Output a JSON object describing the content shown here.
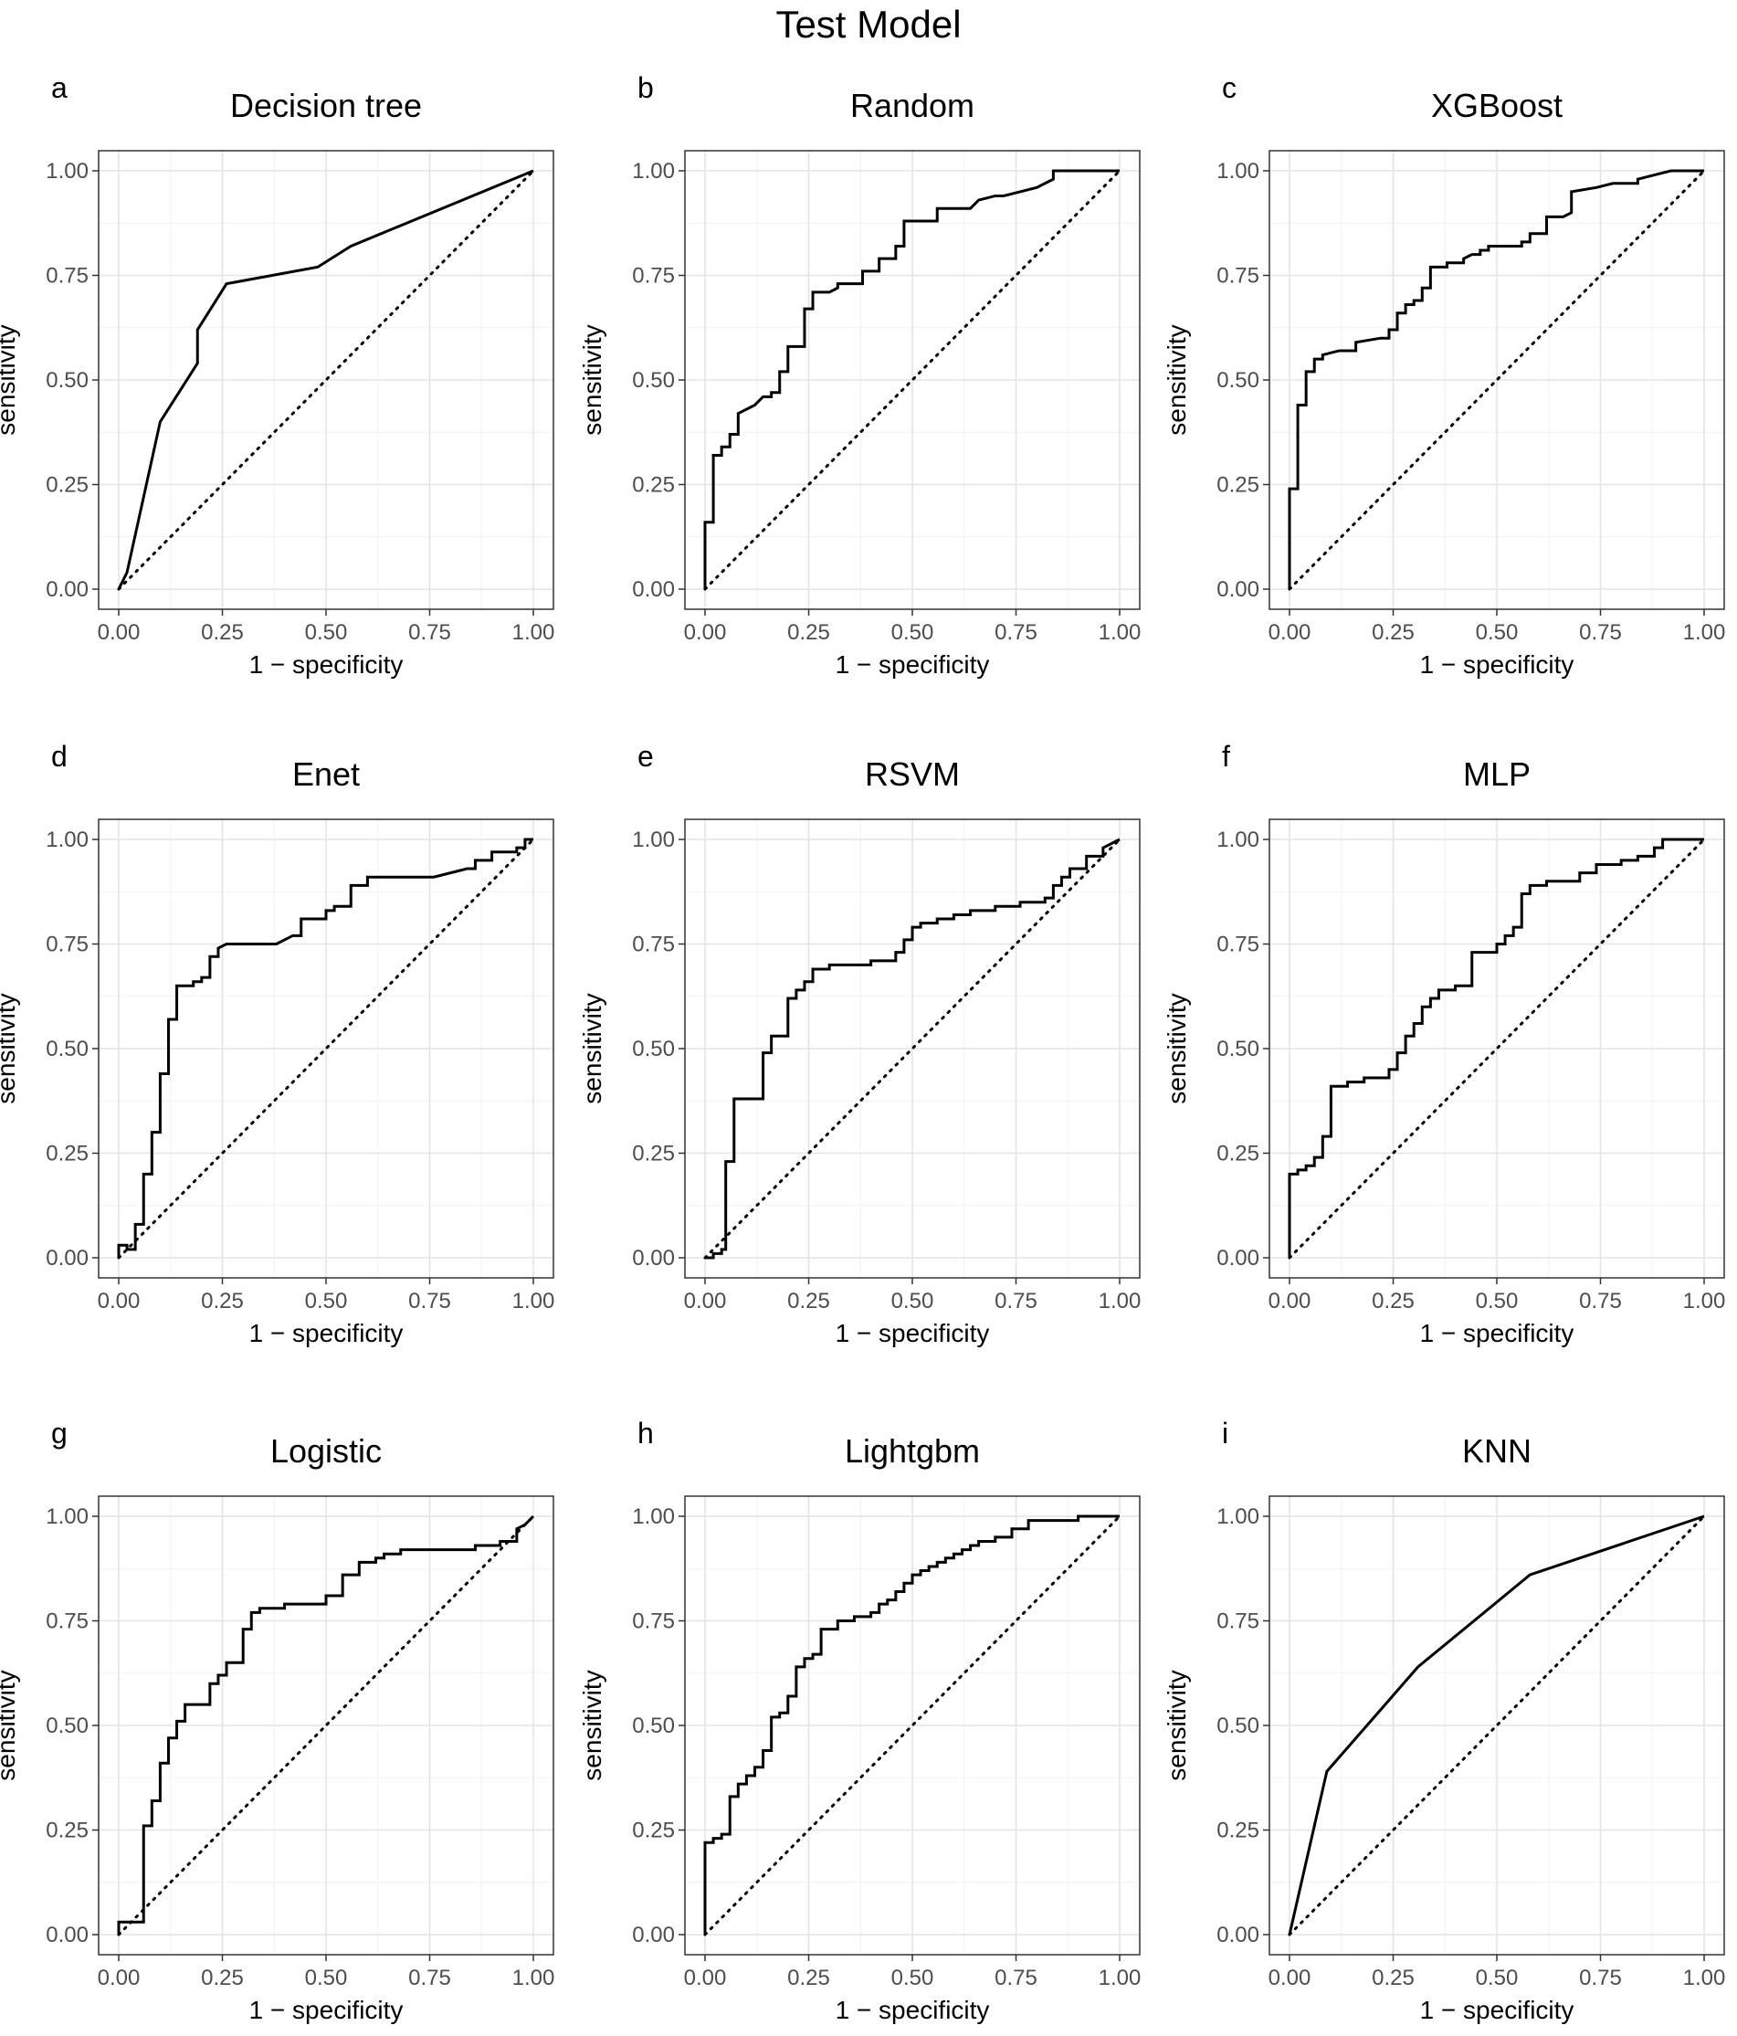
{
  "figure_title": "Test Model",
  "chart_data": [
    {
      "panel": "a",
      "title": "Decision tree",
      "type": "line",
      "xlabel": "1 − specificity",
      "ylabel": "sensitivity",
      "xlim": [
        0,
        1
      ],
      "ylim": [
        0,
        1
      ],
      "ticks": [
        "0.00",
        "0.25",
        "0.50",
        "0.75",
        "1.00"
      ],
      "curve": {
        "name": "ROC",
        "x": [
          0,
          0.02,
          0.1,
          0.19,
          0.19,
          0.26,
          0.48,
          0.56,
          1.0
        ],
        "y": [
          0,
          0.04,
          0.4,
          0.54,
          0.62,
          0.73,
          0.77,
          0.82,
          1.0
        ]
      },
      "reference": {
        "name": "chance",
        "x": [
          0,
          1
        ],
        "y": [
          0,
          1
        ]
      }
    },
    {
      "panel": "b",
      "title": "Random",
      "type": "line",
      "xlabel": "1 − specificity",
      "ylabel": "sensitivity",
      "xlim": [
        0,
        1
      ],
      "ylim": [
        0,
        1
      ],
      "ticks": [
        "0.00",
        "0.25",
        "0.50",
        "0.75",
        "1.00"
      ],
      "curve": {
        "name": "ROC",
        "x": [
          0,
          0,
          0.02,
          0.02,
          0.04,
          0.04,
          0.06,
          0.06,
          0.08,
          0.08,
          0.12,
          0.14,
          0.16,
          0.16,
          0.18,
          0.18,
          0.2,
          0.2,
          0.24,
          0.24,
          0.26,
          0.26,
          0.3,
          0.32,
          0.32,
          0.38,
          0.38,
          0.42,
          0.42,
          0.46,
          0.46,
          0.48,
          0.48,
          0.56,
          0.56,
          0.64,
          0.66,
          0.7,
          0.72,
          0.76,
          0.8,
          0.82,
          0.84,
          0.84,
          0.9,
          1.0
        ],
        "y": [
          0,
          0.16,
          0.16,
          0.32,
          0.32,
          0.34,
          0.34,
          0.37,
          0.37,
          0.42,
          0.44,
          0.46,
          0.46,
          0.47,
          0.47,
          0.52,
          0.52,
          0.58,
          0.58,
          0.67,
          0.67,
          0.71,
          0.71,
          0.72,
          0.73,
          0.73,
          0.76,
          0.76,
          0.79,
          0.79,
          0.82,
          0.82,
          0.88,
          0.88,
          0.91,
          0.91,
          0.93,
          0.94,
          0.94,
          0.95,
          0.96,
          0.97,
          0.98,
          1.0,
          1.0,
          1.0
        ]
      },
      "reference": {
        "name": "chance",
        "x": [
          0,
          1
        ],
        "y": [
          0,
          1
        ]
      }
    },
    {
      "panel": "c",
      "title": "XGBoost",
      "type": "line",
      "xlabel": "1 − specificity",
      "ylabel": "sensitivity",
      "xlim": [
        0,
        1
      ],
      "ylim": [
        0,
        1
      ],
      "ticks": [
        "0.00",
        "0.25",
        "0.50",
        "0.75",
        "1.00"
      ],
      "curve": {
        "name": "ROC",
        "x": [
          0,
          0,
          0.02,
          0.02,
          0.04,
          0.04,
          0.06,
          0.06,
          0.08,
          0.08,
          0.12,
          0.16,
          0.16,
          0.22,
          0.24,
          0.24,
          0.26,
          0.26,
          0.28,
          0.28,
          0.3,
          0.3,
          0.32,
          0.32,
          0.34,
          0.34,
          0.38,
          0.38,
          0.42,
          0.42,
          0.44,
          0.46,
          0.46,
          0.48,
          0.48,
          0.56,
          0.56,
          0.58,
          0.58,
          0.62,
          0.62,
          0.66,
          0.68,
          0.68,
          0.74,
          0.78,
          0.84,
          0.84,
          0.88,
          0.92,
          1.0
        ],
        "y": [
          0,
          0.24,
          0.24,
          0.44,
          0.44,
          0.52,
          0.52,
          0.55,
          0.55,
          0.56,
          0.57,
          0.57,
          0.59,
          0.6,
          0.6,
          0.62,
          0.62,
          0.66,
          0.66,
          0.68,
          0.68,
          0.69,
          0.69,
          0.72,
          0.72,
          0.77,
          0.77,
          0.78,
          0.78,
          0.79,
          0.8,
          0.8,
          0.81,
          0.81,
          0.82,
          0.82,
          0.83,
          0.83,
          0.85,
          0.85,
          0.89,
          0.89,
          0.9,
          0.95,
          0.96,
          0.97,
          0.97,
          0.98,
          0.99,
          1.0,
          1.0
        ]
      },
      "reference": {
        "name": "chance",
        "x": [
          0,
          1
        ],
        "y": [
          0,
          1
        ]
      }
    },
    {
      "panel": "d",
      "title": "Enet",
      "type": "line",
      "xlabel": "1 − specificity",
      "ylabel": "sensitivity",
      "xlim": [
        0,
        1
      ],
      "ylim": [
        0,
        1
      ],
      "ticks": [
        "0.00",
        "0.25",
        "0.50",
        "0.75",
        "1.00"
      ],
      "curve": {
        "name": "ROC",
        "x": [
          0,
          0,
          0.02,
          0.02,
          0.04,
          0.04,
          0.06,
          0.06,
          0.08,
          0.08,
          0.1,
          0.1,
          0.12,
          0.12,
          0.14,
          0.14,
          0.18,
          0.18,
          0.2,
          0.2,
          0.22,
          0.22,
          0.24,
          0.24,
          0.26,
          0.38,
          0.4,
          0.42,
          0.44,
          0.44,
          0.5,
          0.5,
          0.52,
          0.52,
          0.54,
          0.56,
          0.56,
          0.6,
          0.6,
          0.64,
          0.7,
          0.76,
          0.8,
          0.8,
          0.84,
          0.86,
          0.86,
          0.9,
          0.9,
          0.96,
          0.96,
          0.98,
          0.98,
          1.0
        ],
        "y": [
          0,
          0.03,
          0.03,
          0.02,
          0.02,
          0.08,
          0.08,
          0.2,
          0.2,
          0.3,
          0.3,
          0.44,
          0.44,
          0.57,
          0.57,
          0.65,
          0.65,
          0.66,
          0.66,
          0.67,
          0.67,
          0.72,
          0.72,
          0.74,
          0.75,
          0.75,
          0.76,
          0.77,
          0.77,
          0.81,
          0.81,
          0.83,
          0.83,
          0.84,
          0.84,
          0.84,
          0.89,
          0.89,
          0.91,
          0.91,
          0.91,
          0.91,
          0.92,
          0.92,
          0.93,
          0.93,
          0.95,
          0.95,
          0.97,
          0.97,
          0.98,
          0.98,
          1.0,
          1.0
        ]
      },
      "reference": {
        "name": "chance",
        "x": [
          0,
          1
        ],
        "y": [
          0,
          1
        ]
      }
    },
    {
      "panel": "e",
      "title": "RSVM",
      "type": "line",
      "xlabel": "1 − specificity",
      "ylabel": "sensitivity",
      "xlim": [
        0,
        1
      ],
      "ylim": [
        0,
        1
      ],
      "ticks": [
        "0.00",
        "0.25",
        "0.50",
        "0.75",
        "1.00"
      ],
      "curve": {
        "name": "ROC",
        "x": [
          0,
          0.02,
          0.02,
          0.04,
          0.04,
          0.05,
          0.05,
          0.07,
          0.07,
          0.14,
          0.14,
          0.16,
          0.16,
          0.2,
          0.2,
          0.22,
          0.22,
          0.24,
          0.24,
          0.26,
          0.26,
          0.3,
          0.3,
          0.4,
          0.4,
          0.46,
          0.46,
          0.48,
          0.48,
          0.5,
          0.5,
          0.52,
          0.52,
          0.56,
          0.56,
          0.6,
          0.6,
          0.64,
          0.64,
          0.7,
          0.7,
          0.76,
          0.76,
          0.82,
          0.82,
          0.84,
          0.84,
          0.86,
          0.86,
          0.88,
          0.88,
          0.92,
          0.92,
          0.96,
          0.96,
          1.0
        ],
        "y": [
          0,
          0,
          0.01,
          0.01,
          0.02,
          0.02,
          0.23,
          0.23,
          0.38,
          0.38,
          0.49,
          0.49,
          0.53,
          0.53,
          0.62,
          0.62,
          0.64,
          0.64,
          0.66,
          0.66,
          0.69,
          0.69,
          0.7,
          0.7,
          0.71,
          0.71,
          0.73,
          0.73,
          0.76,
          0.76,
          0.79,
          0.79,
          0.8,
          0.8,
          0.81,
          0.81,
          0.82,
          0.82,
          0.83,
          0.83,
          0.84,
          0.84,
          0.85,
          0.85,
          0.86,
          0.86,
          0.89,
          0.89,
          0.91,
          0.91,
          0.93,
          0.93,
          0.96,
          0.96,
          0.98,
          1.0
        ]
      },
      "reference": {
        "name": "chance",
        "x": [
          0,
          1
        ],
        "y": [
          0,
          1
        ]
      }
    },
    {
      "panel": "f",
      "title": "MLP",
      "type": "line",
      "xlabel": "1 − specificity",
      "ylabel": "sensitivity",
      "xlim": [
        0,
        1
      ],
      "ylim": [
        0,
        1
      ],
      "ticks": [
        "0.00",
        "0.25",
        "0.50",
        "0.75",
        "1.00"
      ],
      "curve": {
        "name": "ROC",
        "x": [
          0,
          0,
          0.02,
          0.02,
          0.04,
          0.04,
          0.06,
          0.06,
          0.08,
          0.08,
          0.1,
          0.1,
          0.14,
          0.14,
          0.18,
          0.18,
          0.24,
          0.24,
          0.26,
          0.26,
          0.28,
          0.28,
          0.3,
          0.3,
          0.32,
          0.32,
          0.34,
          0.34,
          0.36,
          0.36,
          0.4,
          0.4,
          0.44,
          0.44,
          0.5,
          0.5,
          0.52,
          0.52,
          0.54,
          0.54,
          0.56,
          0.56,
          0.58,
          0.58,
          0.62,
          0.62,
          0.7,
          0.7,
          0.74,
          0.74,
          0.8,
          0.8,
          0.84,
          0.84,
          0.88,
          0.88,
          0.9,
          0.9,
          1.0
        ],
        "y": [
          0,
          0.2,
          0.2,
          0.21,
          0.21,
          0.22,
          0.22,
          0.24,
          0.24,
          0.29,
          0.29,
          0.41,
          0.41,
          0.42,
          0.42,
          0.43,
          0.43,
          0.45,
          0.45,
          0.49,
          0.49,
          0.53,
          0.53,
          0.56,
          0.56,
          0.6,
          0.6,
          0.62,
          0.62,
          0.64,
          0.64,
          0.65,
          0.65,
          0.73,
          0.73,
          0.75,
          0.75,
          0.77,
          0.77,
          0.79,
          0.79,
          0.87,
          0.87,
          0.89,
          0.89,
          0.9,
          0.9,
          0.92,
          0.92,
          0.94,
          0.94,
          0.95,
          0.95,
          0.96,
          0.96,
          0.98,
          0.98,
          1.0,
          1.0
        ]
      },
      "reference": {
        "name": "chance",
        "x": [
          0,
          1
        ],
        "y": [
          0,
          1
        ]
      }
    },
    {
      "panel": "g",
      "title": "Logistic",
      "type": "line",
      "xlabel": "1 − specificity",
      "ylabel": "sensitivity",
      "xlim": [
        0,
        1
      ],
      "ylim": [
        0,
        1
      ],
      "ticks": [
        "0.00",
        "0.25",
        "0.50",
        "0.75",
        "1.00"
      ],
      "curve": {
        "name": "ROC",
        "x": [
          0,
          0,
          0.04,
          0.04,
          0.06,
          0.06,
          0.08,
          0.08,
          0.1,
          0.1,
          0.12,
          0.12,
          0.14,
          0.14,
          0.16,
          0.16,
          0.18,
          0.18,
          0.22,
          0.22,
          0.24,
          0.24,
          0.26,
          0.26,
          0.28,
          0.28,
          0.3,
          0.3,
          0.32,
          0.32,
          0.34,
          0.34,
          0.36,
          0.36,
          0.4,
          0.4,
          0.44,
          0.44,
          0.5,
          0.5,
          0.54,
          0.54,
          0.58,
          0.58,
          0.62,
          0.62,
          0.64,
          0.64,
          0.68,
          0.68,
          0.74,
          0.74,
          0.86,
          0.86,
          0.92,
          0.92,
          0.96,
          0.96,
          0.98,
          1.0
        ],
        "y": [
          0,
          0.03,
          0.03,
          0.03,
          0.03,
          0.26,
          0.26,
          0.32,
          0.32,
          0.41,
          0.41,
          0.47,
          0.47,
          0.51,
          0.51,
          0.55,
          0.55,
          0.55,
          0.55,
          0.6,
          0.6,
          0.62,
          0.62,
          0.65,
          0.65,
          0.65,
          0.65,
          0.73,
          0.73,
          0.77,
          0.77,
          0.78,
          0.78,
          0.78,
          0.78,
          0.79,
          0.79,
          0.79,
          0.79,
          0.81,
          0.81,
          0.86,
          0.86,
          0.89,
          0.89,
          0.9,
          0.9,
          0.91,
          0.91,
          0.92,
          0.92,
          0.92,
          0.92,
          0.93,
          0.93,
          0.94,
          0.94,
          0.97,
          0.98,
          1.0
        ]
      },
      "reference": {
        "name": "chance",
        "x": [
          0,
          1
        ],
        "y": [
          0,
          1
        ]
      }
    },
    {
      "panel": "h",
      "title": "Lightgbm",
      "type": "line",
      "xlabel": "1 − specificity",
      "ylabel": "sensitivity",
      "xlim": [
        0,
        1
      ],
      "ylim": [
        0,
        1
      ],
      "ticks": [
        "0.00",
        "0.25",
        "0.50",
        "0.75",
        "1.00"
      ],
      "curve": {
        "name": "ROC",
        "x": [
          0,
          0,
          0.02,
          0.02,
          0.04,
          0.04,
          0.06,
          0.06,
          0.08,
          0.08,
          0.1,
          0.1,
          0.12,
          0.12,
          0.14,
          0.14,
          0.16,
          0.16,
          0.18,
          0.18,
          0.2,
          0.2,
          0.22,
          0.22,
          0.24,
          0.24,
          0.26,
          0.26,
          0.28,
          0.28,
          0.32,
          0.32,
          0.36,
          0.36,
          0.4,
          0.4,
          0.42,
          0.42,
          0.44,
          0.44,
          0.46,
          0.46,
          0.48,
          0.48,
          0.5,
          0.5,
          0.52,
          0.52,
          0.54,
          0.54,
          0.56,
          0.56,
          0.58,
          0.58,
          0.6,
          0.6,
          0.62,
          0.62,
          0.64,
          0.64,
          0.66,
          0.66,
          0.68,
          0.68,
          0.7,
          0.7,
          0.74,
          0.74,
          0.78,
          0.78,
          0.82,
          0.82,
          0.9,
          0.9,
          0.96,
          1.0
        ],
        "y": [
          0,
          0.22,
          0.22,
          0.23,
          0.23,
          0.24,
          0.24,
          0.33,
          0.33,
          0.36,
          0.36,
          0.38,
          0.38,
          0.4,
          0.4,
          0.44,
          0.44,
          0.52,
          0.52,
          0.53,
          0.53,
          0.57,
          0.57,
          0.64,
          0.64,
          0.66,
          0.66,
          0.67,
          0.67,
          0.73,
          0.73,
          0.75,
          0.75,
          0.76,
          0.76,
          0.77,
          0.77,
          0.79,
          0.79,
          0.8,
          0.8,
          0.82,
          0.82,
          0.84,
          0.84,
          0.86,
          0.86,
          0.87,
          0.87,
          0.88,
          0.88,
          0.89,
          0.89,
          0.9,
          0.9,
          0.91,
          0.91,
          0.92,
          0.92,
          0.93,
          0.93,
          0.94,
          0.94,
          0.94,
          0.94,
          0.95,
          0.95,
          0.97,
          0.97,
          0.99,
          0.99,
          0.99,
          0.99,
          1.0,
          1.0,
          1.0
        ]
      },
      "reference": {
        "name": "chance",
        "x": [
          0,
          1
        ],
        "y": [
          0,
          1
        ]
      }
    },
    {
      "panel": "i",
      "title": "KNN",
      "type": "line",
      "xlabel": "1 − specificity",
      "ylabel": "sensitivity",
      "xlim": [
        0,
        1
      ],
      "ylim": [
        0,
        1
      ],
      "ticks": [
        "0.00",
        "0.25",
        "0.50",
        "0.75",
        "1.00"
      ],
      "curve": {
        "name": "ROC",
        "x": [
          0,
          0.09,
          0.31,
          0.58,
          1.0
        ],
        "y": [
          0,
          0.39,
          0.64,
          0.86,
          1.0
        ]
      },
      "reference": {
        "name": "chance",
        "x": [
          0,
          1
        ],
        "y": [
          0,
          1
        ]
      }
    }
  ]
}
